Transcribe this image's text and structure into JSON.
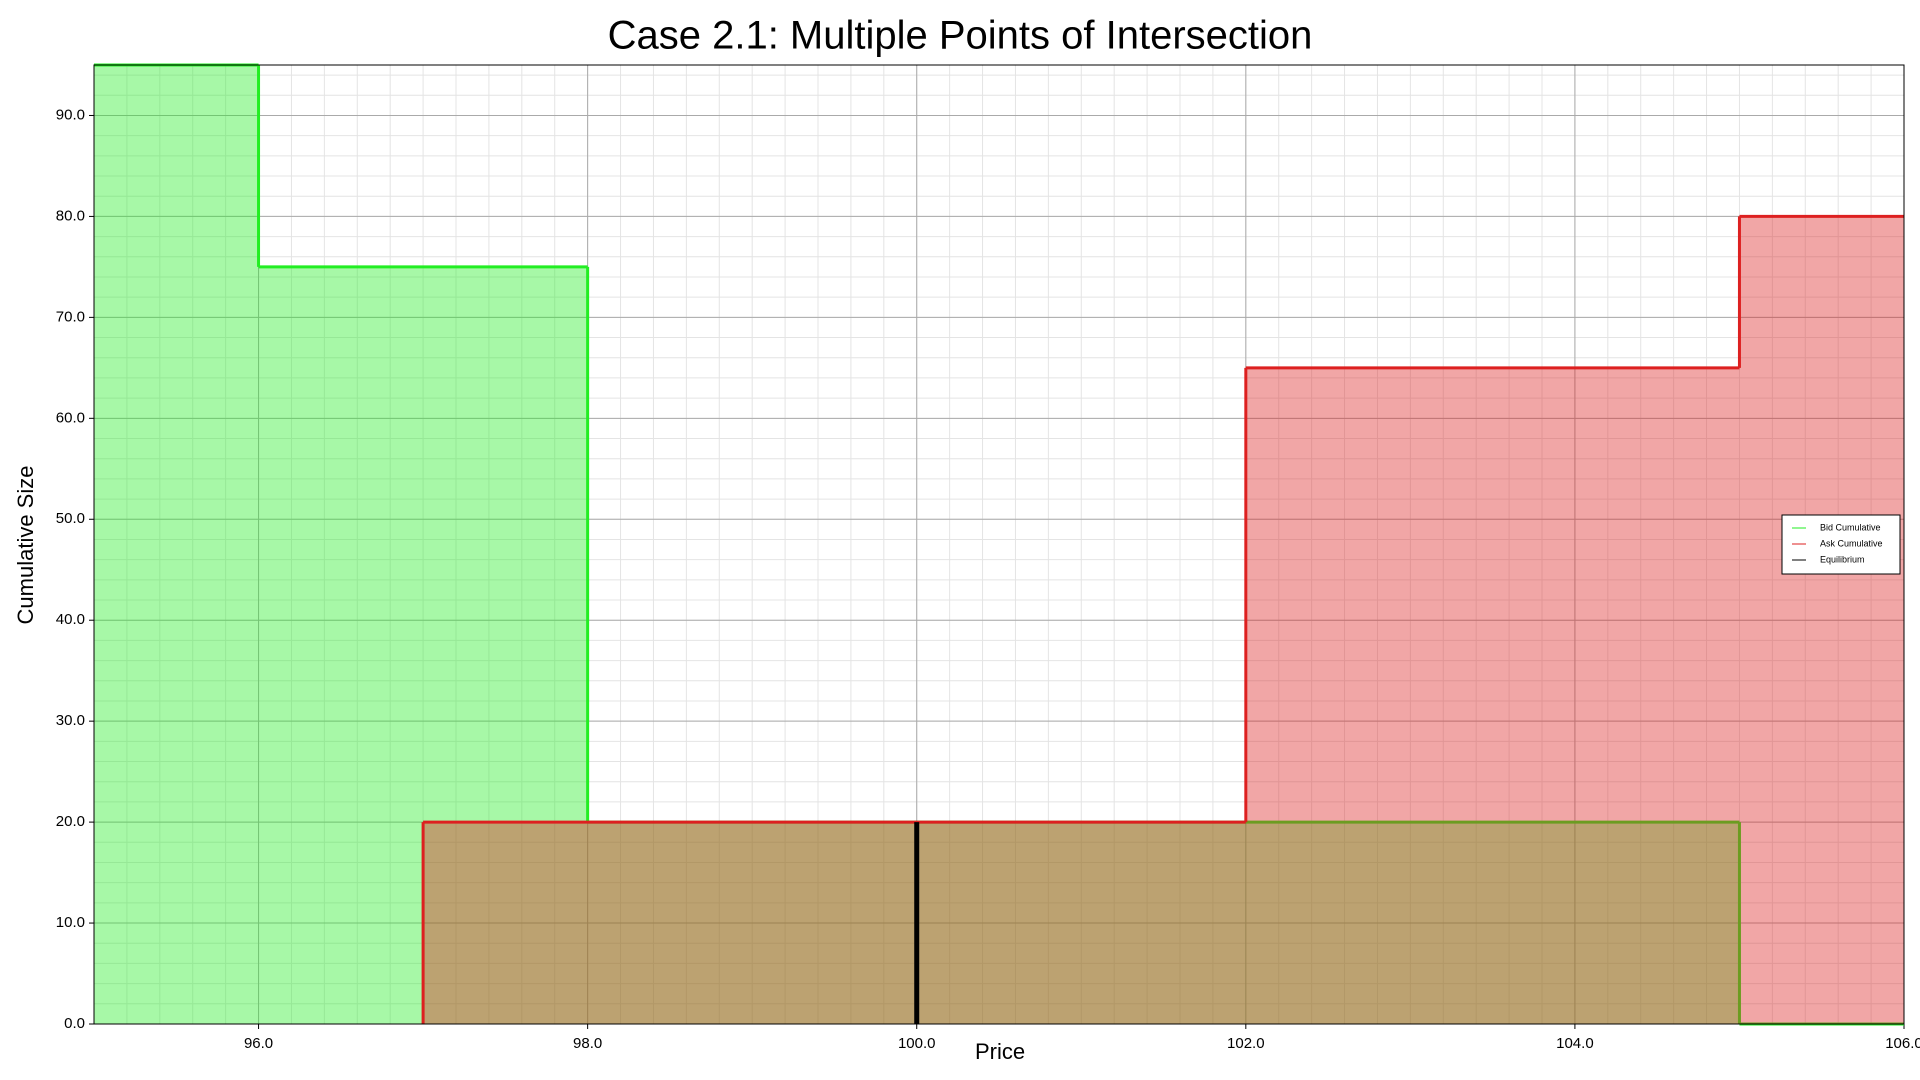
{
  "chart_data": {
    "type": "step",
    "title": "Case 2.1: Multiple Points of Intersection",
    "x_label": "Price",
    "y_label": "Cumulative Size",
    "series": [
      {
        "name": "Bid Cumulative",
        "color": "#22ee22",
        "x": [
          95,
          96,
          98,
          105
        ],
        "values": [
          95,
          75,
          20,
          0
        ]
      },
      {
        "name": "Ask Cumulative",
        "color": "#dd2020",
        "x": [
          97,
          102,
          105
        ],
        "values": [
          20,
          65,
          80
        ]
      }
    ],
    "equilibrium": {
      "name": "Equilibrium",
      "color": "#000000",
      "x": 100,
      "value": 20
    },
    "xlim": [
      95,
      106
    ],
    "ylim": [
      0,
      95
    ],
    "xticks": [
      {
        "value": 96,
        "label": "96.0"
      },
      {
        "value": 98,
        "label": "98.0"
      },
      {
        "value": 100,
        "label": "100.0"
      },
      {
        "value": 102,
        "label": "102.0"
      },
      {
        "value": 104,
        "label": "104.0"
      },
      {
        "value": 106,
        "label": "106.0"
      }
    ],
    "yticks": [
      {
        "value": 0,
        "label": "0.0"
      },
      {
        "value": 10,
        "label": "10.0"
      },
      {
        "value": 20,
        "label": "20.0"
      },
      {
        "value": 30,
        "label": "30.0"
      },
      {
        "value": 40,
        "label": "40.0"
      },
      {
        "value": 50,
        "label": "50.0"
      },
      {
        "value": 60,
        "label": "60.0"
      },
      {
        "value": 70,
        "label": "70.0"
      },
      {
        "value": 80,
        "label": "80.0"
      },
      {
        "value": 90,
        "label": "90.0"
      }
    ],
    "grid": true,
    "minor_grid": true,
    "legend": "center right",
    "fill_opacity": 0.4
  }
}
